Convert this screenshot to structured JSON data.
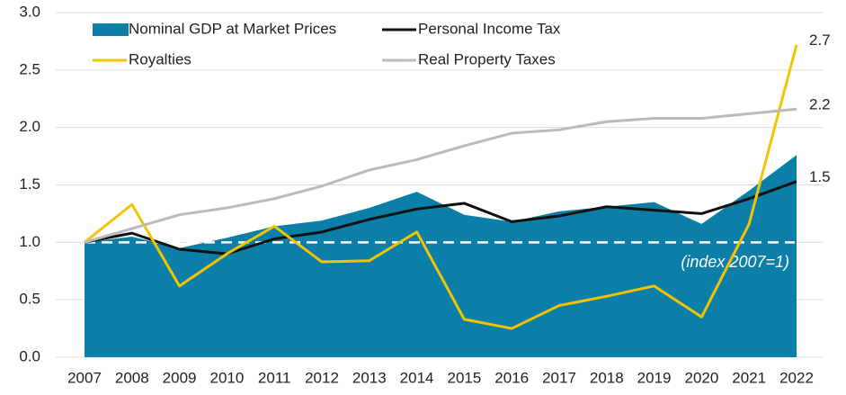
{
  "chart_data": {
    "type": "line",
    "categories": [
      "2007",
      "2008",
      "2009",
      "2010",
      "2011",
      "2012",
      "2013",
      "2014",
      "2015",
      "2016",
      "2017",
      "2018",
      "2019",
      "2020",
      "2021",
      "2022"
    ],
    "ylim": [
      0,
      3.0
    ],
    "yticks": [
      {
        "value": 0,
        "label": "0.0"
      },
      0.5,
      {
        "value": 1,
        "label": "1.0"
      },
      1.5,
      {
        "value": 2,
        "label": "2.0"
      },
      2.5,
      {
        "value": 3,
        "label": "3.0"
      }
    ],
    "grid": true,
    "legend": "top-left",
    "reference_line": {
      "value": 1,
      "label": "(index 2007=1)"
    },
    "series": [
      {
        "name": "Nominal GDP at Market Prices",
        "type": "area",
        "color": "#0b7fa8",
        "values": [
          1.0,
          1.05,
          0.95,
          1.04,
          1.14,
          1.19,
          1.3,
          1.44,
          1.24,
          1.18,
          1.27,
          1.31,
          1.35,
          1.16,
          1.45,
          1.76
        ]
      },
      {
        "name": "Personal Income Tax",
        "type": "line",
        "color": "#111111",
        "values": [
          1.0,
          1.08,
          0.94,
          0.9,
          1.03,
          1.09,
          1.2,
          1.29,
          1.34,
          1.18,
          1.23,
          1.31,
          1.28,
          1.25,
          1.38,
          1.53
        ],
        "value_labels": [
          null,
          null,
          null,
          null,
          null,
          null,
          null,
          null,
          null,
          null,
          null,
          null,
          null,
          null,
          null,
          "1.5"
        ]
      },
      {
        "name": "Royalties",
        "type": "line",
        "color": "#f5c400",
        "values": [
          1.0,
          1.33,
          0.62,
          0.9,
          1.14,
          0.83,
          0.84,
          1.09,
          0.33,
          0.25,
          0.45,
          0.53,
          0.62,
          0.35,
          1.16,
          2.72
        ],
        "value_labels": [
          null,
          null,
          null,
          null,
          null,
          null,
          null,
          null,
          null,
          null,
          null,
          null,
          null,
          null,
          null,
          "2.7"
        ]
      },
      {
        "name": "Real Property Taxes",
        "type": "line",
        "color": "#b9b9c0",
        "values": [
          1.0,
          1.12,
          1.24,
          1.3,
          1.38,
          1.49,
          1.63,
          1.72,
          1.84,
          1.95,
          1.98,
          2.05,
          2.08,
          2.08,
          2.12,
          2.16
        ],
        "value_labels": [
          null,
          null,
          null,
          null,
          null,
          null,
          null,
          null,
          null,
          null,
          null,
          null,
          null,
          null,
          null,
          "2.2"
        ]
      }
    ]
  }
}
